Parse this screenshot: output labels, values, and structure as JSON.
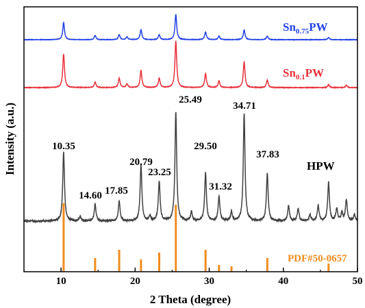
{
  "chart_data": {
    "type": "line",
    "xlabel": "2 Theta (degree)",
    "ylabel": "Intensity (a.u.)",
    "xlim": [
      5,
      50
    ],
    "x_ticks": [
      "10",
      "20",
      "30",
      "40",
      "50"
    ],
    "y_ticks_shown": false,
    "grid": false,
    "series": [
      {
        "name_main": "Sn",
        "name_sub": "0.75",
        "name_suffix": "PW",
        "color": "#1f3fe6",
        "peaks": [
          {
            "x": 10.35,
            "h": 0.48
          },
          {
            "x": 14.6,
            "h": 0.12
          },
          {
            "x": 17.85,
            "h": 0.14
          },
          {
            "x": 18.9,
            "h": 0.08
          },
          {
            "x": 20.79,
            "h": 0.28
          },
          {
            "x": 23.25,
            "h": 0.14
          },
          {
            "x": 25.49,
            "h": 0.7
          },
          {
            "x": 29.5,
            "h": 0.22
          },
          {
            "x": 31.32,
            "h": 0.1
          },
          {
            "x": 34.71,
            "h": 0.27
          },
          {
            "x": 37.83,
            "h": 0.1
          },
          {
            "x": 46.1,
            "h": 0.06
          }
        ]
      },
      {
        "name_main": "Sn",
        "name_sub": "0.1",
        "name_suffix": "PW",
        "color": "#e8303a",
        "peaks": [
          {
            "x": 10.35,
            "h": 0.72
          },
          {
            "x": 14.6,
            "h": 0.12
          },
          {
            "x": 17.85,
            "h": 0.2
          },
          {
            "x": 18.9,
            "h": 0.08
          },
          {
            "x": 20.79,
            "h": 0.37
          },
          {
            "x": 23.25,
            "h": 0.2
          },
          {
            "x": 25.49,
            "h": 1.0
          },
          {
            "x": 29.5,
            "h": 0.3
          },
          {
            "x": 31.32,
            "h": 0.14
          },
          {
            "x": 34.71,
            "h": 0.55
          },
          {
            "x": 37.83,
            "h": 0.16
          },
          {
            "x": 46.1,
            "h": 0.06
          },
          {
            "x": 48.5,
            "h": 0.05
          }
        ]
      },
      {
        "name_main": "HPW",
        "name_sub": "",
        "name_suffix": "",
        "color": "#404040",
        "peaks": [
          {
            "x": 10.35,
            "h": 0.45
          },
          {
            "x": 12.6,
            "h": 0.03
          },
          {
            "x": 14.6,
            "h": 0.11
          },
          {
            "x": 17.85,
            "h": 0.13
          },
          {
            "x": 20.79,
            "h": 0.37
          },
          {
            "x": 22.0,
            "h": 0.03
          },
          {
            "x": 23.25,
            "h": 0.26
          },
          {
            "x": 25.49,
            "h": 0.71
          },
          {
            "x": 27.6,
            "h": 0.06
          },
          {
            "x": 29.5,
            "h": 0.31
          },
          {
            "x": 31.32,
            "h": 0.16
          },
          {
            "x": 33.0,
            "h": 0.06
          },
          {
            "x": 34.71,
            "h": 0.7
          },
          {
            "x": 37.83,
            "h": 0.31
          },
          {
            "x": 40.7,
            "h": 0.1
          },
          {
            "x": 42.0,
            "h": 0.08
          },
          {
            "x": 43.6,
            "h": 0.04
          },
          {
            "x": 44.7,
            "h": 0.1
          },
          {
            "x": 46.1,
            "h": 0.25
          },
          {
            "x": 47.2,
            "h": 0.08
          },
          {
            "x": 47.9,
            "h": 0.05
          },
          {
            "x": 48.5,
            "h": 0.14
          },
          {
            "x": 49.6,
            "h": 0.04
          }
        ]
      }
    ],
    "reference": {
      "name": "PDF#50-0657",
      "color": "#f08c1e",
      "sticks": [
        {
          "x": 10.35,
          "h": 1.0
        },
        {
          "x": 14.6,
          "h": 0.2
        },
        {
          "x": 17.85,
          "h": 0.32
        },
        {
          "x": 20.79,
          "h": 0.18
        },
        {
          "x": 23.25,
          "h": 0.28
        },
        {
          "x": 25.49,
          "h": 0.98
        },
        {
          "x": 29.5,
          "h": 0.32
        },
        {
          "x": 31.32,
          "h": 0.1
        },
        {
          "x": 33.0,
          "h": 0.08
        },
        {
          "x": 37.83,
          "h": 0.2
        },
        {
          "x": 46.1,
          "h": 0.12
        }
      ]
    },
    "peak_labels": [
      "10.35",
      "14.60",
      "17.85",
      "20.79",
      "23.25",
      "25.49",
      "29.50",
      "31.32",
      "34.71",
      "37.83"
    ]
  }
}
